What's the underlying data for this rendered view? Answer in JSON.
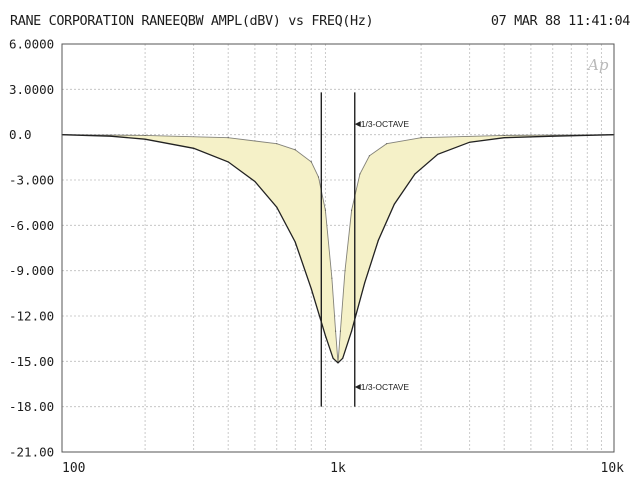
{
  "header": {
    "title": "RANE CORPORATION RANEEQBW AMPL(dBV) vs FREQ(Hz)",
    "timestamp": "07 MAR 88 11:41:04",
    "logo": "Ap"
  },
  "colors": {
    "background": "#ffffff",
    "grid": "#bdbdbd",
    "curve": "#222222",
    "fill": "#f5f1c8",
    "text": "#1d1d1d"
  },
  "chart_data": {
    "type": "line",
    "title": "RANE CORPORATION RANEEQBW AMPL(dBV) vs FREQ(Hz)",
    "xlabel": "FREQ(Hz)",
    "ylabel": "AMPL(dBV)",
    "x_scale": "log",
    "xlim": [
      100,
      10000
    ],
    "ylim": [
      -21,
      6
    ],
    "grid": true,
    "x_ticks": [
      100,
      1000,
      10000
    ],
    "x_tick_labels": [
      "100",
      "1k",
      "10k"
    ],
    "y_ticks": [
      6,
      3,
      0,
      -3,
      -6,
      -9,
      -12,
      -15,
      -18,
      -21
    ],
    "y_tick_labels": [
      "6.0000",
      "3.0000",
      "0.0",
      "-3.000",
      "-6.000",
      "-9.000",
      "-12.00",
      "-15.00",
      "-18.00",
      "-21.00"
    ],
    "series": [
      {
        "name": "",
        "points": [
          [
            100,
            0
          ],
          [
            150,
            -0.1
          ],
          [
            200,
            -0.3
          ],
          [
            300,
            -0.9
          ],
          [
            400,
            -1.8
          ],
          [
            500,
            -3.1
          ],
          [
            600,
            -4.8
          ],
          [
            700,
            -7.1
          ],
          [
            800,
            -10.2
          ],
          [
            900,
            -13.3
          ],
          [
            960,
            -14.8
          ],
          [
            1000,
            -15.1
          ],
          [
            1040,
            -14.8
          ],
          [
            1120,
            -13.0
          ],
          [
            1250,
            -9.8
          ],
          [
            1400,
            -7.0
          ],
          [
            1600,
            -4.6
          ],
          [
            1900,
            -2.6
          ],
          [
            2300,
            -1.3
          ],
          [
            3000,
            -0.5
          ],
          [
            4000,
            -0.2
          ],
          [
            6000,
            -0.1
          ],
          [
            10000,
            0
          ]
        ]
      },
      {
        "name": "",
        "points": [
          [
            100,
            0
          ],
          [
            200,
            -0.05
          ],
          [
            400,
            -0.2
          ],
          [
            600,
            -0.6
          ],
          [
            700,
            -1.0
          ],
          [
            800,
            -1.8
          ],
          [
            850,
            -2.8
          ],
          [
            900,
            -5.0
          ],
          [
            950,
            -9.5
          ],
          [
            980,
            -13.0
          ],
          [
            1000,
            -15.1
          ],
          [
            1020,
            -13.0
          ],
          [
            1060,
            -9.0
          ],
          [
            1120,
            -5.0
          ],
          [
            1200,
            -2.6
          ],
          [
            1300,
            -1.4
          ],
          [
            1500,
            -0.6
          ],
          [
            2000,
            -0.2
          ],
          [
            4000,
            -0.05
          ],
          [
            10000,
            0
          ]
        ]
      }
    ],
    "vertical_markers": [
      {
        "x": 870,
        "y_from": -18,
        "y_to": 2.8
      },
      {
        "x": 1150,
        "y_from": -18,
        "y_to": 2.8
      }
    ],
    "annotations": [
      {
        "text": "1/3-OCTAVE",
        "x": 1150,
        "y": 0.7
      },
      {
        "text": "1/3-OCTAVE",
        "x": 1150,
        "y": -16.7
      }
    ]
  }
}
